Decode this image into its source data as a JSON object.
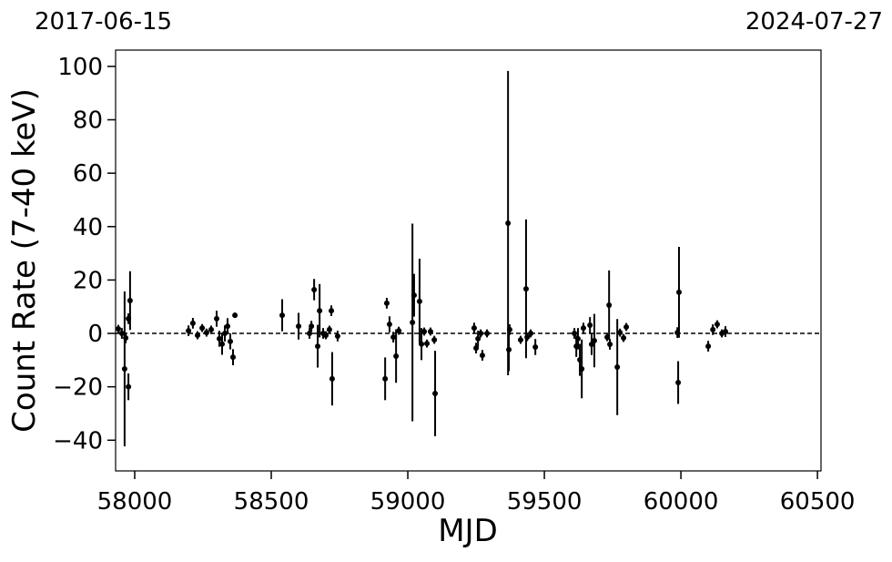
{
  "chart_data": {
    "type": "scatter",
    "top_left_label": "2017-06-15",
    "top_right_label": "2024-07-27",
    "xlabel": "MJD",
    "ylabel": "Count Rate (7-40 keV)",
    "xlim": [
      57930,
      60513
    ],
    "ylim": [
      -51.5,
      106.1
    ],
    "xticks": [
      58000,
      58500,
      59000,
      59500,
      60000,
      60500
    ],
    "yticks": [
      {
        "value": -40,
        "label": "−40"
      },
      {
        "value": -20,
        "label": "−20"
      },
      0,
      20,
      40,
      60,
      80,
      100
    ],
    "reference_line": 0,
    "color": "#000000",
    "series": [
      {
        "x": [
          57940,
          57953,
          57963,
          57967,
          57977,
          57977,
          57983,
          58197,
          58213,
          58230,
          58247,
          58263,
          58280,
          58300,
          58310,
          58320,
          58330,
          58340,
          58350,
          58360,
          58367,
          58540,
          58600,
          58640,
          58647,
          58657,
          58670,
          58677,
          58690,
          58700,
          58713,
          58720,
          58723,
          58743,
          58917,
          58923,
          58933,
          58947,
          58957,
          58967,
          59017,
          59023,
          59043,
          59050,
          59060,
          59070,
          59083,
          59097,
          59100,
          59243,
          59250,
          59257,
          59267,
          59273,
          59290,
          59367,
          59370,
          59373,
          59413,
          59433,
          59437,
          59450,
          59467,
          59610,
          59617,
          59623,
          59630,
          59637,
          59643,
          59667,
          59673,
          59683,
          59730,
          59737,
          59740,
          59767,
          59777,
          59790,
          59800,
          59987,
          59990,
          59993,
          60100,
          60117,
          60133,
          60150,
          60163
        ],
        "y": [
          1.7,
          0,
          -13.3,
          -1.7,
          5.5,
          -20,
          12.3,
          1.0,
          3.8,
          -0.7,
          2,
          0.3,
          1.4,
          5.5,
          -2,
          -4,
          0,
          2.7,
          -3,
          -8.9,
          6.8,
          6.8,
          2.7,
          0,
          2.7,
          16.4,
          -4.8,
          8.5,
          0,
          -0.7,
          1.4,
          8.5,
          -17,
          -1,
          -17,
          11.3,
          3.4,
          -1.4,
          -8.5,
          1,
          4.1,
          14.3,
          12,
          -4,
          0.7,
          -3.8,
          0.7,
          -2.4,
          -22.5,
          2,
          -5.5,
          -2,
          0,
          -8.2,
          0,
          41.3,
          -6.1,
          1.4,
          -2.4,
          16.7,
          -1.4,
          0,
          -5.1,
          0,
          -4.8,
          -2,
          -9.9,
          -13.3,
          2,
          3.1,
          -4.1,
          -2.7,
          -1.4,
          10.6,
          -4.1,
          -12.6,
          0.3,
          -1.7,
          2.4,
          0.3,
          -18.4,
          15.4,
          -4.8,
          1.4,
          3.4,
          0,
          0.7
        ],
        "err": [
          1.5,
          2,
          29,
          2,
          2,
          5,
          11,
          2,
          2,
          1.5,
          1.5,
          1.5,
          1.5,
          3,
          3,
          4,
          3,
          3,
          3,
          3,
          1,
          6,
          5,
          2,
          2,
          4,
          8,
          10,
          2,
          1.5,
          1.5,
          2,
          10,
          2,
          8,
          2,
          3,
          2,
          10,
          1.5,
          37,
          8,
          16,
          6,
          1.5,
          1.5,
          1.5,
          1.5,
          16,
          2,
          2,
          3,
          1.5,
          2,
          1.5,
          57,
          8,
          2,
          1.5,
          26,
          1.5,
          1.5,
          3,
          2,
          4,
          4,
          6,
          11,
          2,
          3,
          4,
          10,
          1.5,
          13,
          2,
          18,
          1.5,
          1.5,
          1.5,
          2,
          8,
          17,
          2,
          2,
          1.5,
          1.5,
          2
        ]
      }
    ]
  }
}
